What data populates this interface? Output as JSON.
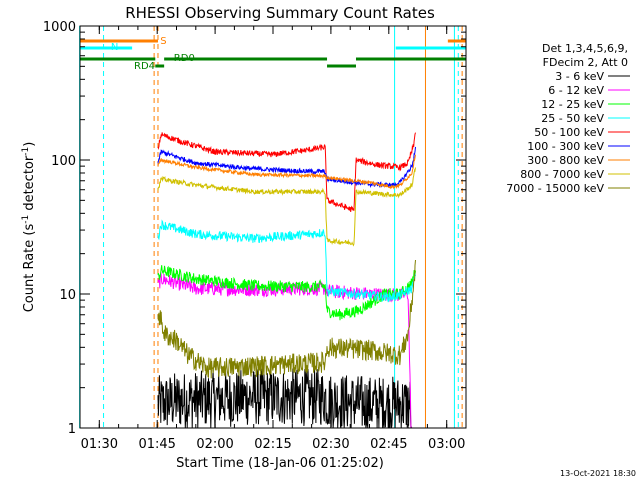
{
  "chart_data": {
    "type": "line",
    "title": "RHESSI Observing Summary Count Rates",
    "xlabel": "Start Time (18-Jan-06 01:25:02)",
    "ylabel_main": "Count Rate (s",
    "ylabel_sup1": "-1",
    "ylabel_mid": " detector",
    "ylabel_sup2": "-1",
    "ylabel_end": ")",
    "yscale": "log",
    "xlim": [
      85,
      185
    ],
    "ylim": [
      1,
      1000
    ],
    "x_unit": "minutes after 00:00 UT, 18-Jan-06",
    "x_ticks": [
      {
        "value": 90,
        "label": "01:30"
      },
      {
        "value": 105,
        "label": "01:45"
      },
      {
        "value": 120,
        "label": "02:00"
      },
      {
        "value": 135,
        "label": "02:15"
      },
      {
        "value": 150,
        "label": "02:30"
      },
      {
        "value": 165,
        "label": "02:45"
      },
      {
        "value": 180,
        "label": "03:00"
      }
    ],
    "y_ticks": [
      {
        "value": 1,
        "label": "1"
      },
      {
        "value": 10,
        "label": "10"
      },
      {
        "value": 100,
        "label": "100"
      },
      {
        "value": 1000,
        "label": "1000"
      }
    ],
    "legend_header": [
      "Det 1,3,4,5,6,9,",
      "FDecim 2, Att 0"
    ],
    "legend_position": "right",
    "series": [
      {
        "name": "3 - 6 keV",
        "color": "#000000",
        "noise": 0.5,
        "x": [
          105.2,
          110,
          130,
          148.5,
          149,
          160,
          166,
          170.5,
          171
        ],
        "y": [
          1.5,
          1.6,
          1.7,
          1.7,
          1.6,
          1.5,
          1.5,
          1.5,
          0.5
        ]
      },
      {
        "name": "6 - 12 keV",
        "color": "#ff00ff",
        "noise": 0.12,
        "x": [
          105.2,
          106,
          115,
          130,
          148.5,
          149,
          160,
          168,
          170,
          171
        ],
        "y": [
          11.5,
          13,
          11,
          10.8,
          11,
          10.5,
          10,
          9.8,
          10,
          0.5
        ]
      },
      {
        "name": "12 - 25 keV",
        "color": "#00ff00",
        "noise": 0.1,
        "x": [
          105.2,
          106,
          115,
          130,
          145,
          148.5,
          149,
          152,
          157,
          164,
          168,
          171,
          172
        ],
        "y": [
          13,
          15,
          13,
          11.5,
          11.3,
          11.5,
          7.5,
          7,
          7.5,
          10,
          10,
          12,
          16
        ]
      },
      {
        "name": "25 - 50 keV",
        "color": "#00ffff",
        "noise": 0.08,
        "x": [
          105.2,
          106,
          115,
          130,
          145,
          148.5,
          149,
          165,
          168,
          171,
          172
        ],
        "y": [
          26,
          33,
          28,
          26,
          28,
          29,
          10.5,
          9.5,
          9.8,
          11,
          14
        ]
      },
      {
        "name": "50 - 100 keV",
        "color": "#ff0000",
        "noise": 0.05,
        "x": [
          105.2,
          106,
          112,
          120,
          135,
          145,
          148.5,
          149,
          156,
          156.5,
          162,
          168,
          170,
          171.5,
          172
        ],
        "y": [
          120,
          155,
          135,
          115,
          110,
          120,
          125,
          50,
          42,
          100,
          92,
          88,
          95,
          130,
          175
        ]
      },
      {
        "name": "100 - 300 keV",
        "color": "#0000ff",
        "noise": 0.04,
        "x": [
          105.2,
          106,
          115,
          130,
          145,
          148.5,
          149,
          160,
          166,
          168,
          171,
          172
        ],
        "y": [
          95,
          115,
          95,
          86,
          82,
          82,
          72,
          66,
          65,
          68,
          90,
          125
        ]
      },
      {
        "name": "300 - 800 keV",
        "color": "#ff7f00",
        "noise": 0.03,
        "x": [
          105.2,
          106,
          115,
          130,
          148.5,
          149,
          160,
          166,
          168,
          171,
          172
        ],
        "y": [
          90,
          100,
          88,
          78,
          76,
          74,
          68,
          63,
          65,
          80,
          115
        ]
      },
      {
        "name": "800 - 7000 keV",
        "color": "#d0c000",
        "noise": 0.04,
        "x": [
          105.2,
          106,
          115,
          130,
          148.5,
          149,
          156,
          156.5,
          166,
          168,
          171,
          172
        ],
        "y": [
          60,
          72,
          65,
          58,
          58,
          25,
          24,
          58,
          55,
          55,
          65,
          90
        ]
      },
      {
        "name": "7000 - 15000 keV",
        "color": "#808000",
        "noise": 0.18,
        "x": [
          105.2,
          107,
          110,
          113,
          118,
          130,
          140,
          148.5,
          149,
          160,
          168,
          170,
          171,
          172
        ],
        "y": [
          7.5,
          5,
          4.5,
          3.5,
          2.8,
          2.9,
          3.0,
          3.1,
          4,
          3.8,
          3.5,
          5,
          9,
          17
        ]
      }
    ],
    "vertical_markers": [
      {
        "x": 84.9,
        "color": "#00ffff",
        "style": "solid"
      },
      {
        "x": 104.2,
        "color": "#ff7f00",
        "style": "dashed"
      },
      {
        "x": 105.2,
        "color": "#ff7f00",
        "style": "dashed"
      },
      {
        "x": 91.1,
        "color": "#00ffff",
        "style": "dashed"
      },
      {
        "x": 166.5,
        "color": "#00ffff",
        "style": "solid"
      },
      {
        "x": 182,
        "color": "#00ffff",
        "style": "solid"
      },
      {
        "x": 183,
        "color": "#00ffff",
        "style": "dashed"
      },
      {
        "x": 174.5,
        "color": "#ff7f00",
        "style": "solid"
      },
      {
        "x": 184,
        "color": "#ff7f00",
        "style": "dashed"
      }
    ],
    "flag_bars": [
      {
        "label": "S",
        "color": "#ff7f00",
        "level": 3,
        "segments": [
          [
            85,
            105.2
          ],
          [
            180.3,
            185
          ]
        ],
        "label_x": 105.8
      },
      {
        "label": "N",
        "color": "#00ffff",
        "level": 2,
        "segments": [
          [
            85,
            98.5
          ],
          [
            166.8,
            185
          ]
        ],
        "label_x": 93
      },
      {
        "label": "RD0",
        "color": "#008000",
        "level": 1,
        "segments": [
          [
            85,
            104.5
          ],
          [
            106.8,
            149
          ],
          [
            156.5,
            185
          ]
        ],
        "label_x": 109.3
      },
      {
        "label": "RD4",
        "color": "#008000",
        "level": 0,
        "segments": [
          [
            104.5,
            106.8
          ],
          [
            149,
            156.5
          ]
        ],
        "label_x": 99
      }
    ]
  },
  "footer_date": "13-Oct-2021 18:30"
}
